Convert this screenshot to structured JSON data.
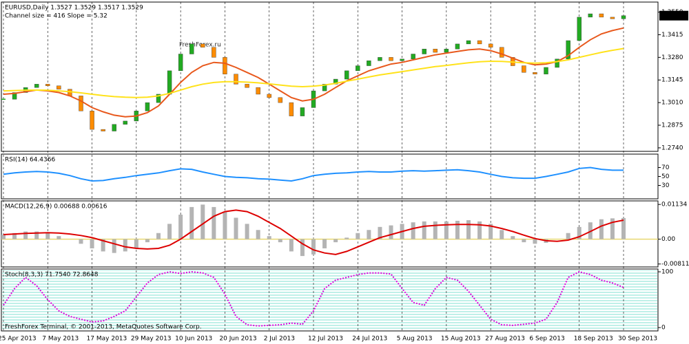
{
  "chart_data": [
    {
      "type": "candlestick",
      "title": "EURUSD,Daily  1.3527 1.3529 1.3517 1.3529",
      "subtitle": "Channel size = 416 Slope = 5.32",
      "watermark": "FreshForex.ru",
      "last_price": {
        "value": 1.3529,
        "label": "1.3529"
      },
      "ylim": [
        1.2719,
        1.361
      ],
      "yticks": [
        {
          "value": 1.274,
          "label": "1.2740"
        },
        {
          "value": 1.2875,
          "label": "1.2875"
        },
        {
          "value": 1.301,
          "label": "1.3010"
        },
        {
          "value": 1.3145,
          "label": "1.3145"
        },
        {
          "value": 1.328,
          "label": "1.3280"
        },
        {
          "value": 1.3415,
          "label": "1.3415"
        },
        {
          "value": 1.355,
          "label": "1.3550"
        }
      ],
      "series": [
        {
          "style": "candles",
          "color": "#22aa22",
          "down_color": "#ff8c00",
          "values": [
            1.303,
            1.307,
            1.31,
            1.312,
            1.311,
            1.309,
            1.305,
            1.296,
            1.285,
            1.284,
            1.288,
            1.29,
            1.296,
            1.301,
            1.306,
            1.32,
            1.33,
            1.336,
            1.334,
            1.328,
            1.318,
            1.312,
            1.31,
            1.306,
            1.304,
            1.301,
            1.293,
            1.298,
            1.308,
            1.312,
            1.315,
            1.32,
            1.323,
            1.326,
            1.328,
            1.326,
            1.327,
            1.33,
            1.333,
            1.331,
            1.333,
            1.336,
            1.338,
            1.336,
            1.334,
            1.328,
            1.323,
            1.319,
            1.318,
            1.322,
            1.327,
            1.338,
            1.352,
            1.354,
            1.352,
            1.351,
            1.3529
          ]
        },
        {
          "style": "line",
          "color": "#e8581c",
          "values": [
            1.306,
            1.3065,
            1.3075,
            1.3085,
            1.308,
            1.307,
            1.305,
            1.302,
            1.298,
            1.2955,
            1.2935,
            1.2925,
            1.293,
            1.295,
            1.299,
            1.306,
            1.313,
            1.319,
            1.323,
            1.325,
            1.3245,
            1.322,
            1.319,
            1.316,
            1.312,
            1.308,
            1.304,
            1.302,
            1.303,
            1.306,
            1.31,
            1.314,
            1.317,
            1.32,
            1.322,
            1.324,
            1.325,
            1.3265,
            1.328,
            1.3295,
            1.3305,
            1.3315,
            1.3325,
            1.333,
            1.332,
            1.33,
            1.3275,
            1.325,
            1.3235,
            1.324,
            1.3255,
            1.329,
            1.334,
            1.3385,
            1.342,
            1.344,
            1.3455
          ]
        },
        {
          "style": "line",
          "color": "#ffe21a",
          "values": [
            1.308,
            1.3082,
            1.3084,
            1.3085,
            1.3084,
            1.308,
            1.3075,
            1.3068,
            1.306,
            1.3052,
            1.3046,
            1.3042,
            1.304,
            1.3042,
            1.305,
            1.3065,
            1.3085,
            1.3105,
            1.312,
            1.313,
            1.3135,
            1.3135,
            1.3132,
            1.3128,
            1.3122,
            1.3115,
            1.3108,
            1.3105,
            1.3108,
            1.3115,
            1.3125,
            1.3138,
            1.315,
            1.3163,
            1.3175,
            1.3185,
            1.3195,
            1.3205,
            1.3215,
            1.3225,
            1.3232,
            1.324,
            1.3248,
            1.3254,
            1.3257,
            1.3256,
            1.3252,
            1.3248,
            1.3246,
            1.3248,
            1.3255,
            1.3265,
            1.328,
            1.3295,
            1.331,
            1.3322,
            1.3333
          ]
        }
      ]
    },
    {
      "type": "line",
      "title": "RSI(14) 64.4366",
      "ylim": [
        0,
        100
      ],
      "yticks": [
        70,
        50,
        30
      ],
      "series": [
        {
          "style": "line",
          "color": "#1e90ff",
          "values": [
            55,
            58,
            60,
            61,
            60,
            57,
            52,
            45,
            40,
            41,
            45,
            48,
            52,
            55,
            58,
            63,
            67,
            66,
            60,
            55,
            50,
            48,
            47,
            45,
            44,
            42,
            40,
            45,
            52,
            55,
            57,
            58,
            60,
            61,
            60,
            60,
            62,
            63,
            62,
            63,
            64,
            65,
            63,
            60,
            55,
            50,
            47,
            46,
            46,
            50,
            55,
            60,
            68,
            70,
            66,
            64,
            64
          ]
        }
      ]
    },
    {
      "type": "line",
      "title": "MACD(12,26,9) 0.00688 0.00616",
      "ylim": [
        -0.00907,
        0.0125
      ],
      "yticks": [
        0.01134,
        {
          "value": 0,
          "label": "0.00"
        },
        -0.00811
      ],
      "series": [
        {
          "style": "histogram",
          "color": "#b4b4b4",
          "values": [
            0.0015,
            0.002,
            0.0025,
            0.0025,
            0.002,
            0.001,
            0.0,
            -0.0015,
            -0.003,
            -0.004,
            -0.0045,
            -0.004,
            -0.003,
            -0.001,
            0.002,
            0.005,
            0.008,
            0.0105,
            0.0113,
            0.0105,
            0.009,
            0.007,
            0.005,
            0.003,
            0.001,
            -0.001,
            -0.004,
            -0.0055,
            -0.005,
            -0.003,
            -0.001,
            0.0005,
            0.002,
            0.003,
            0.004,
            0.0045,
            0.005,
            0.0055,
            0.0058,
            0.0058,
            0.0058,
            0.006,
            0.0062,
            0.0058,
            0.005,
            0.003,
            0.001,
            -0.001,
            -0.0015,
            -0.0012,
            0.0,
            0.002,
            0.004,
            0.0055,
            0.0065,
            0.0068,
            0.0069
          ]
        },
        {
          "style": "line",
          "color": "#dd0000",
          "values": [
            0.0015,
            0.0017,
            0.0019,
            0.002,
            0.0021,
            0.002,
            0.0017,
            0.0012,
            0.0005,
            -0.0005,
            -0.0015,
            -0.0025,
            -0.003,
            -0.0032,
            -0.003,
            -0.002,
            0.0,
            0.0025,
            0.005,
            0.0075,
            0.009,
            0.0095,
            0.009,
            0.0075,
            0.0055,
            0.0035,
            0.001,
            -0.0015,
            -0.0035,
            -0.0045,
            -0.005,
            -0.004,
            -0.0025,
            -0.001,
            0.0005,
            0.0015,
            0.0025,
            0.0035,
            0.0042,
            0.0045,
            0.0047,
            0.0048,
            0.0048,
            0.0047,
            0.0043,
            0.0035,
            0.0025,
            0.0013,
            0.0002,
            -0.0005,
            -0.0007,
            -0.0003,
            0.0008,
            0.0025,
            0.0043,
            0.0055,
            0.0062
          ]
        }
      ]
    },
    {
      "type": "line",
      "title": "Stoch(8,3,3) 71.7540 72.8648",
      "footer": "FreshForex Terminal, © 2001-2013, MetaQuotes Software Corp.",
      "ylim": [
        -6,
        105
      ],
      "yticks": [
        100,
        0
      ],
      "categories": [
        "25 Apr 2013",
        null,
        null,
        null,
        "7 May 2013",
        null,
        null,
        null,
        "17 May 2013",
        null,
        null,
        null,
        "29 May 2013",
        null,
        null,
        null,
        "10 Jun 2013",
        null,
        null,
        null,
        "20 Jun 2013",
        null,
        null,
        null,
        "2 Jul 2013",
        null,
        null,
        null,
        "12 Jul 2013",
        null,
        null,
        null,
        "24 Jul 2013",
        null,
        null,
        null,
        "5 Aug 2013",
        null,
        null,
        null,
        "15 Aug 2013",
        null,
        null,
        null,
        "27 Aug 2013",
        null,
        null,
        null,
        "6 Sep 2013",
        null,
        null,
        null,
        "18 Sep 2013",
        null,
        null,
        null,
        "30 Sep 2013"
      ],
      "series": [
        {
          "style": "dotted",
          "color": "#dd00dd",
          "values": [
            40,
            70,
            90,
            75,
            50,
            30,
            20,
            15,
            10,
            12,
            20,
            30,
            55,
            80,
            95,
            100,
            97,
            100,
            98,
            90,
            60,
            20,
            5,
            3,
            4,
            5,
            8,
            6,
            30,
            70,
            85,
            90,
            95,
            98,
            98,
            96,
            70,
            45,
            40,
            70,
            90,
            85,
            65,
            40,
            15,
            5,
            4,
            6,
            8,
            15,
            45,
            90,
            100,
            95,
            85,
            80,
            72
          ]
        }
      ]
    }
  ]
}
